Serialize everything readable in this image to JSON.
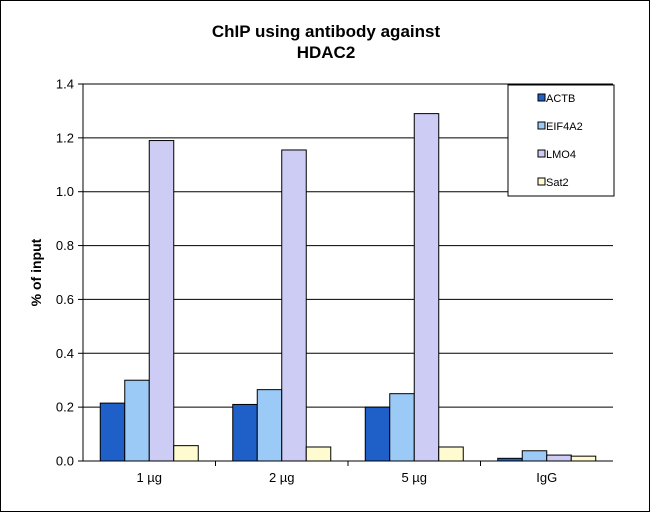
{
  "chart_data": {
    "type": "bar",
    "title_lines": [
      "ChIP using antibody against",
      "HDAC2"
    ],
    "xlabel": "",
    "ylabel": "% of input",
    "categories": [
      "1 µg",
      "2 µg",
      "5 µg",
      "IgG"
    ],
    "series": [
      {
        "name": "ACTB",
        "color": "#1f5fc8",
        "values": [
          0.215,
          0.21,
          0.2,
          0.01
        ]
      },
      {
        "name": "EIF4A2",
        "color": "#9ccaf7",
        "values": [
          0.3,
          0.265,
          0.25,
          0.038
        ]
      },
      {
        "name": "LMO4",
        "color": "#ccccf5",
        "values": [
          1.19,
          1.155,
          1.29,
          0.022
        ]
      },
      {
        "name": "Sat2",
        "color": "#fffbd0",
        "values": [
          0.057,
          0.052,
          0.052,
          0.018
        ]
      }
    ],
    "ylim": [
      0,
      1.4
    ],
    "yticks": [
      "0.0",
      "0.2",
      "0.4",
      "0.6",
      "0.8",
      "1.0",
      "1.2",
      "1.4"
    ],
    "grid": true,
    "legend_position": "top-right"
  }
}
